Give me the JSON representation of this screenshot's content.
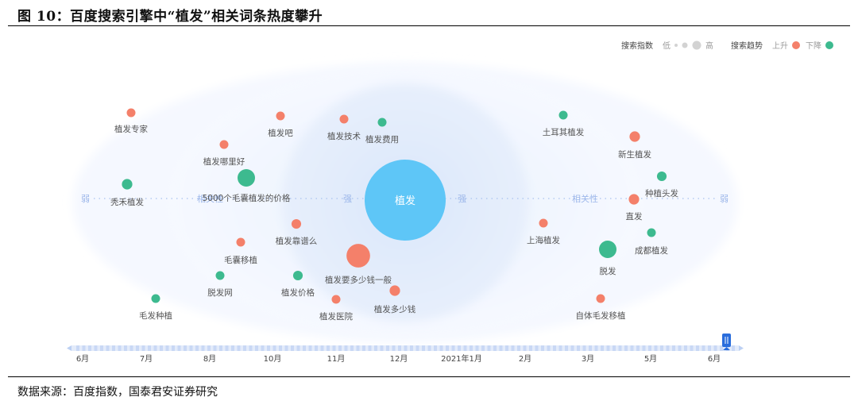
{
  "header": {
    "title": "图 10：百度搜索引擎中“植发”相关词条热度攀升"
  },
  "footer": {
    "source": "数据来源：百度指数，国泰君安证券研究"
  },
  "legend": {
    "index_label": "搜索指数",
    "low": "低",
    "high": "高",
    "trend_label": "搜索趋势",
    "up": "上升",
    "down": "下降",
    "up_color": "#f4806a",
    "down_color": "#3dba8f"
  },
  "chart_data": {
    "type": "bubble-relation",
    "center": {
      "name": "植发",
      "color": "#5ec6f7"
    },
    "axis_labels": {
      "weak": "弱",
      "relevance": "相关性",
      "strong": "强"
    },
    "timeline": [
      "6月",
      "7月",
      "8月",
      "10月",
      "11月",
      "12月",
      "2021年1月",
      "2月",
      "3月",
      "5月",
      "6月"
    ],
    "terms": [
      {
        "name": "植发专家",
        "trend": "up",
        "size": 1
      },
      {
        "name": "植发吧",
        "trend": "up",
        "size": 1
      },
      {
        "name": "植发技术",
        "trend": "up",
        "size": 1
      },
      {
        "name": "植发费用",
        "trend": "down",
        "size": 1
      },
      {
        "name": "土耳其植发",
        "trend": "down",
        "size": 1
      },
      {
        "name": "新生植发",
        "trend": "up",
        "size": 1.2
      },
      {
        "name": "植发哪里好",
        "trend": "up",
        "size": 1
      },
      {
        "name": "种植头发",
        "trend": "down",
        "size": 1.1
      },
      {
        "name": "秃禾植发",
        "trend": "down",
        "size": 1.2
      },
      {
        "name": "5000个毛囊植发的价格",
        "trend": "down",
        "size": 2
      },
      {
        "name": "直发",
        "trend": "up",
        "size": 1.2
      },
      {
        "name": "上海植发",
        "trend": "up",
        "size": 1
      },
      {
        "name": "植发靠谱么",
        "trend": "up",
        "size": 1.1
      },
      {
        "name": "成都植发",
        "trend": "down",
        "size": 1
      },
      {
        "name": "毛囊移植",
        "trend": "up",
        "size": 1
      },
      {
        "name": "脱发",
        "trend": "down",
        "size": 2
      },
      {
        "name": "植发要多少钱一般",
        "trend": "up",
        "size": 2.7
      },
      {
        "name": "脱发网",
        "trend": "down",
        "size": 1
      },
      {
        "name": "植发价格",
        "trend": "down",
        "size": 1.1
      },
      {
        "name": "植发多少钱",
        "trend": "up",
        "size": 1.2
      },
      {
        "name": "毛发种植",
        "trend": "down",
        "size": 1
      },
      {
        "name": "植发医院",
        "trend": "up",
        "size": 1
      },
      {
        "name": "自体毛发移植",
        "trend": "up",
        "size": 1
      }
    ]
  }
}
